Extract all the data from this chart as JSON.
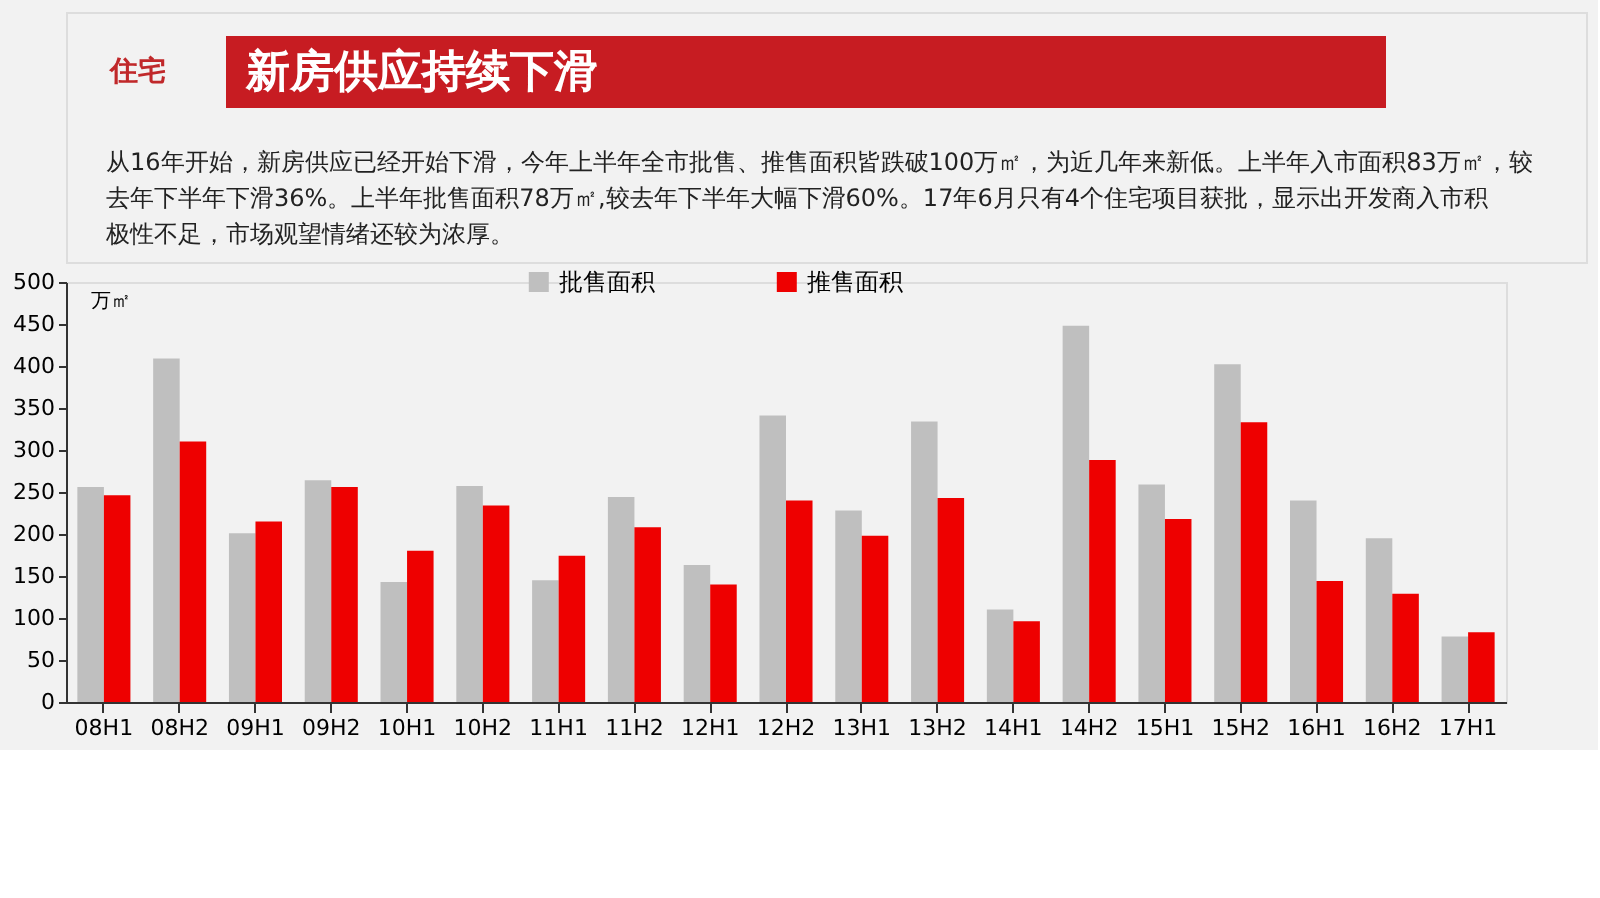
{
  "chart_data": {
    "type": "bar",
    "title": "新房供应持续下滑",
    "subtitle": "从16年开始，新房供应已经开始下滑，今年上半年全市批售、推售面积皆跌破100万㎡，为近几年来新低。上半年入市面积83万㎡，较去年下半年下滑36%。上半年批售面积78万㎡,较去年下半年大幅下滑60%。17年6月只有4个住宅项目获批，显示出开发商入市积极性不足，市场观望情绪还较为浓厚。",
    "annotations": [
      "住宅"
    ],
    "ylabel": "万㎡",
    "categories": [
      "08H1",
      "08H2",
      "09H1",
      "09H2",
      "10H1",
      "10H2",
      "11H1",
      "11H2",
      "12H1",
      "12H2",
      "13H1",
      "13H2",
      "14H1",
      "14H2",
      "15H1",
      "15H2",
      "16H1",
      "16H2",
      "17H1"
    ],
    "series": [
      {
        "name": "批售面积",
        "color": "#bfbfbf",
        "values": [
          256,
          409,
          201,
          264,
          143,
          257,
          145,
          244,
          163,
          341,
          228,
          334,
          110,
          448,
          259,
          402,
          240,
          195,
          78
        ]
      },
      {
        "name": "推售面积",
        "color": "#ee0000",
        "values": [
          246,
          310,
          215,
          256,
          180,
          234,
          174,
          208,
          140,
          240,
          198,
          243,
          96,
          288,
          218,
          333,
          144,
          129,
          83
        ]
      }
    ],
    "ylim": [
      0,
      500
    ],
    "yticks": [
      0,
      50,
      100,
      150,
      200,
      250,
      300,
      350,
      400,
      450,
      500
    ],
    "grid": false,
    "legend": "top"
  }
}
